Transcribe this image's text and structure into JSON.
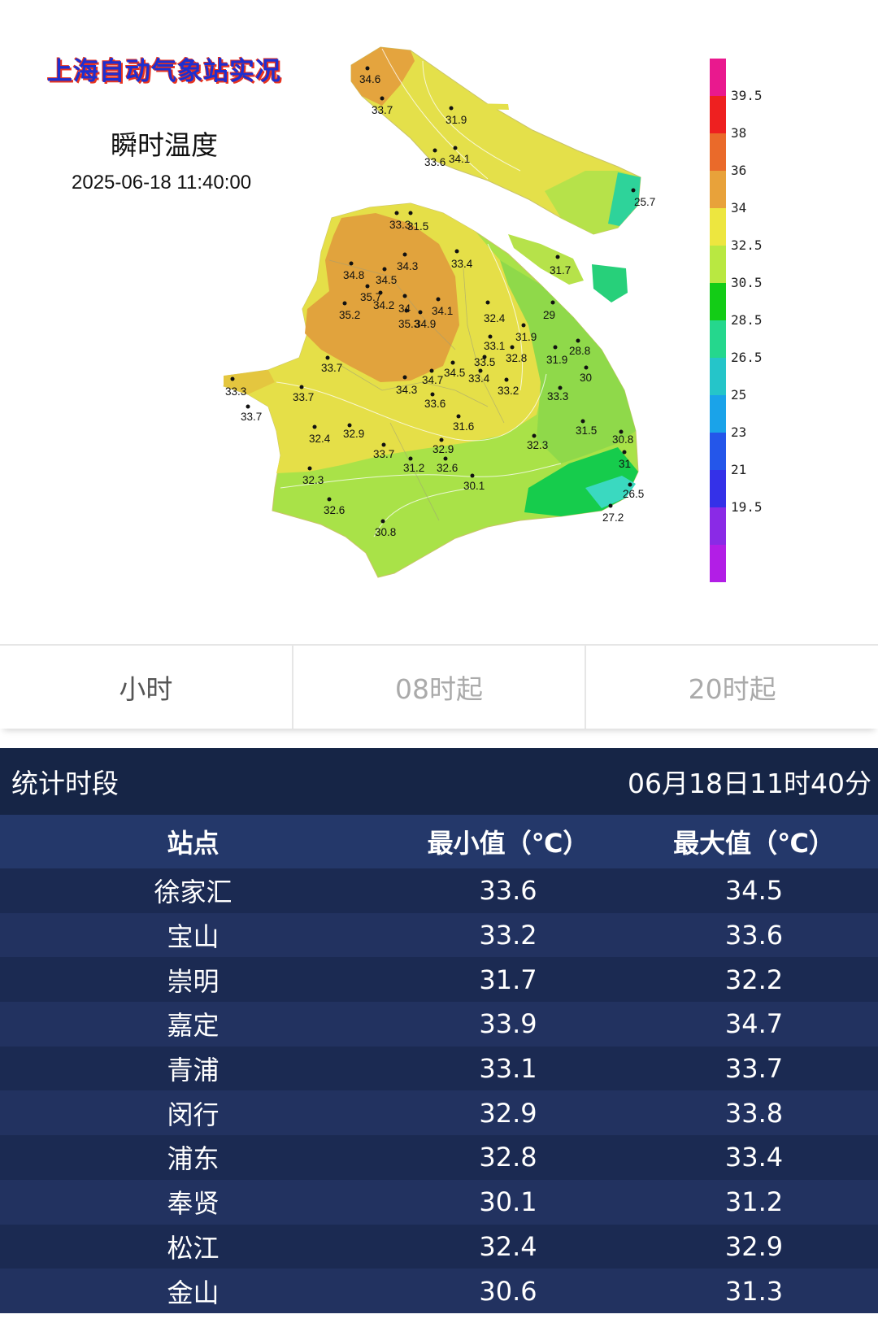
{
  "map": {
    "title": "上海自动气象站实况",
    "subtitle": "瞬时温度",
    "timestamp": "2025-06-18 11:40:00",
    "stations": [
      "34.6",
      "33.7",
      "31.9",
      "33.6",
      "34.1",
      "25.7",
      "33.3",
      "31.5",
      "34.3",
      "33.4",
      "34.8",
      "34.5",
      "35.7",
      "34.2",
      "35.2",
      "34",
      "35.3",
      "34.9",
      "34.1",
      "32.4",
      "31.7",
      "29",
      "31.9",
      "28.8",
      "33.1",
      "32.8",
      "31.9",
      "30",
      "33.7",
      "33.5",
      "34.5",
      "33.4",
      "34.7",
      "34.3",
      "33.2",
      "33.3",
      "33.3",
      "33.7",
      "33.6",
      "33.7",
      "31.6",
      "31.5",
      "32.4",
      "32.9",
      "32.9",
      "32.3",
      "30.8",
      "33.7",
      "31.2",
      "32.6",
      "31",
      "32.3",
      "30.1",
      "26.5",
      "32.6",
      "27.2",
      "30.8"
    ],
    "legend": {
      "labels": [
        "39.5",
        "38",
        "36",
        "34",
        "32.5",
        "30.5",
        "28.5",
        "26.5",
        "25",
        "23",
        "21",
        "19.5"
      ],
      "colors": [
        "#e9198e",
        "#ee2020",
        "#ea6a2a",
        "#e8a23a",
        "#ede63f",
        "#b9e841",
        "#13cc16",
        "#25d78d",
        "#25c5c9",
        "#1aa3e9",
        "#2456ea",
        "#3431e8",
        "#8a2ae6",
        "#b21ee6"
      ]
    }
  },
  "tabs": [
    {
      "label": "小时",
      "active": true
    },
    {
      "label": "08时起",
      "active": false
    },
    {
      "label": "20时起",
      "active": false
    }
  ],
  "stats": {
    "period_label": "统计时段",
    "period_value": "06月18日11时40分",
    "headers": [
      "站点",
      "最小值（℃）",
      "最大值（℃）"
    ],
    "rows": [
      [
        "徐家汇",
        "33.6",
        "34.5"
      ],
      [
        "宝山",
        "33.2",
        "33.6"
      ],
      [
        "崇明",
        "31.7",
        "32.2"
      ],
      [
        "嘉定",
        "33.9",
        "34.7"
      ],
      [
        "青浦",
        "33.1",
        "33.7"
      ],
      [
        "闵行",
        "32.9",
        "33.8"
      ],
      [
        "浦东",
        "32.8",
        "33.4"
      ],
      [
        "奉贤",
        "30.1",
        "31.2"
      ],
      [
        "松江",
        "32.4",
        "32.9"
      ],
      [
        "金山",
        "30.6",
        "31.3"
      ]
    ]
  }
}
